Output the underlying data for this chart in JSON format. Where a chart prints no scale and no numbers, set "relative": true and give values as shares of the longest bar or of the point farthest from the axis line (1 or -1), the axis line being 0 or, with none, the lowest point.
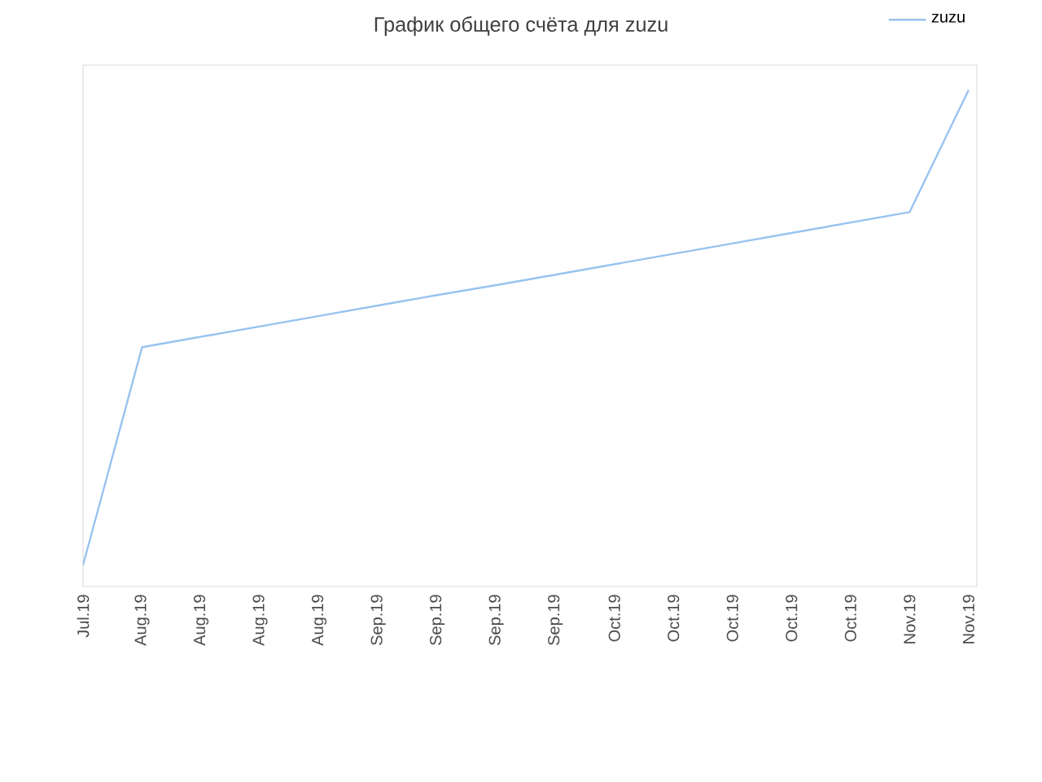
{
  "chart_data": {
    "type": "line",
    "title": "График общего счёта для zuzu",
    "relative": true,
    "legend": "top right",
    "categories": [
      "Jul.19",
      "Aug.19",
      "Aug.19",
      "Aug.19",
      "Aug.19",
      "Sep.19",
      "Sep.19",
      "Sep.19",
      "Sep.19",
      "Oct.19",
      "Oct.19",
      "Oct.19",
      "Oct.19",
      "Oct.19",
      "Nov.19",
      "Nov.19"
    ],
    "series": [
      {
        "name": "zuzu",
        "color": "#99c3f0",
        "values": [
          0.043,
          0.482,
          0.503,
          0.524,
          0.545,
          0.566,
          0.587,
          0.607,
          0.628,
          0.649,
          0.67,
          0.691,
          0.712,
          0.733,
          0.754,
          1
        ]
      }
    ]
  }
}
